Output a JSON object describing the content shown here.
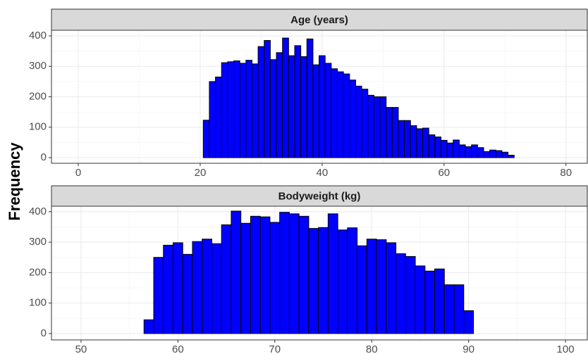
{
  "y_axis_label": "Frequency",
  "chart_data": [
    {
      "type": "histogram",
      "title": "Age (years)",
      "color": "#0000ff",
      "grid": true,
      "bins": [
        -0.5,
        0.5,
        1.5,
        2.5,
        3.5,
        4.5,
        5.5,
        6.5,
        7.5,
        8.5,
        9.5,
        10.5,
        11.5,
        12.5,
        13.5,
        14.5,
        15.5,
        16.5,
        17.5,
        18.5,
        19.5,
        20.5,
        21.5,
        22.5,
        23.5,
        24.5,
        25.5,
        26.5,
        27.5,
        28.5,
        29.5,
        30.5,
        31.5,
        32.5,
        33.5,
        34.5,
        35.5,
        36.5,
        37.5,
        38.5,
        39.5,
        40.5,
        41.5,
        42.5,
        43.5,
        44.5,
        45.5,
        46.5,
        47.5,
        48.5,
        49.5,
        50.5,
        51.5,
        52.5,
        53.5,
        54.5,
        55.5,
        56.5,
        57.5,
        58.5,
        59.5,
        60.5,
        61.5,
        62.5,
        63.5,
        64.5,
        65.5,
        66.5,
        67.5,
        68.5,
        69.5,
        70.5,
        71.5,
        72.5,
        73.5,
        74.5,
        75.5,
        76.5,
        77.5,
        78.5,
        79.5,
        80.5
      ],
      "values": [
        0,
        0,
        0,
        0,
        0,
        0,
        0,
        0,
        0,
        0,
        0,
        0,
        0,
        0,
        0,
        0,
        0,
        0,
        0,
        0,
        0,
        123,
        250,
        265,
        312,
        315,
        318,
        310,
        320,
        308,
        365,
        385,
        322,
        345,
        393,
        335,
        368,
        332,
        390,
        305,
        335,
        310,
        292,
        282,
        275,
        255,
        235,
        225,
        205,
        200,
        200,
        165,
        165,
        122,
        122,
        105,
        95,
        97,
        75,
        68,
        57,
        48,
        58,
        42,
        36,
        42,
        33,
        20,
        25,
        23,
        18,
        8,
        0,
        0,
        0,
        0,
        0,
        0,
        0,
        0,
        0,
        0
      ],
      "xlim": [
        -4.4,
        83.5
      ],
      "xticks": [
        0,
        20,
        40,
        60,
        80
      ],
      "ylim": [
        -18.5,
        418.5
      ],
      "yticks": [
        0,
        100,
        200,
        300,
        400
      ]
    },
    {
      "type": "histogram",
      "title": "Bodyweight (kg)",
      "color": "#0000ff",
      "grid": true,
      "bins": [
        49.5,
        50.5,
        51.5,
        52.5,
        53.5,
        54.5,
        55.5,
        56.5,
        57.5,
        58.5,
        59.5,
        60.5,
        61.5,
        62.5,
        63.5,
        64.5,
        65.5,
        66.5,
        67.5,
        68.5,
        69.5,
        70.5,
        71.5,
        72.5,
        73.5,
        74.5,
        75.5,
        76.5,
        77.5,
        78.5,
        79.5,
        80.5,
        81.5,
        82.5,
        83.5,
        84.5,
        85.5,
        86.5,
        87.5,
        88.5,
        89.5,
        90.5,
        91.5,
        92.5,
        93.5,
        94.5,
        95.5,
        96.5,
        97.5,
        98.5,
        99.5,
        100.5
      ],
      "values": [
        0,
        0,
        0,
        0,
        0,
        0,
        0,
        45,
        250,
        290,
        298,
        260,
        302,
        310,
        295,
        357,
        402,
        362,
        385,
        383,
        365,
        398,
        393,
        385,
        345,
        348,
        393,
        340,
        347,
        288,
        310,
        308,
        298,
        262,
        253,
        222,
        205,
        212,
        160,
        160,
        75,
        0,
        0,
        0,
        0,
        0,
        0,
        0,
        0,
        0,
        0
      ],
      "xlim": [
        46.95,
        102.25
      ],
      "xticks": [
        50,
        60,
        70,
        80,
        90,
        100
      ],
      "ylim": [
        -21,
        418
      ],
      "yticks": [
        0,
        100,
        200,
        300,
        400
      ]
    }
  ]
}
